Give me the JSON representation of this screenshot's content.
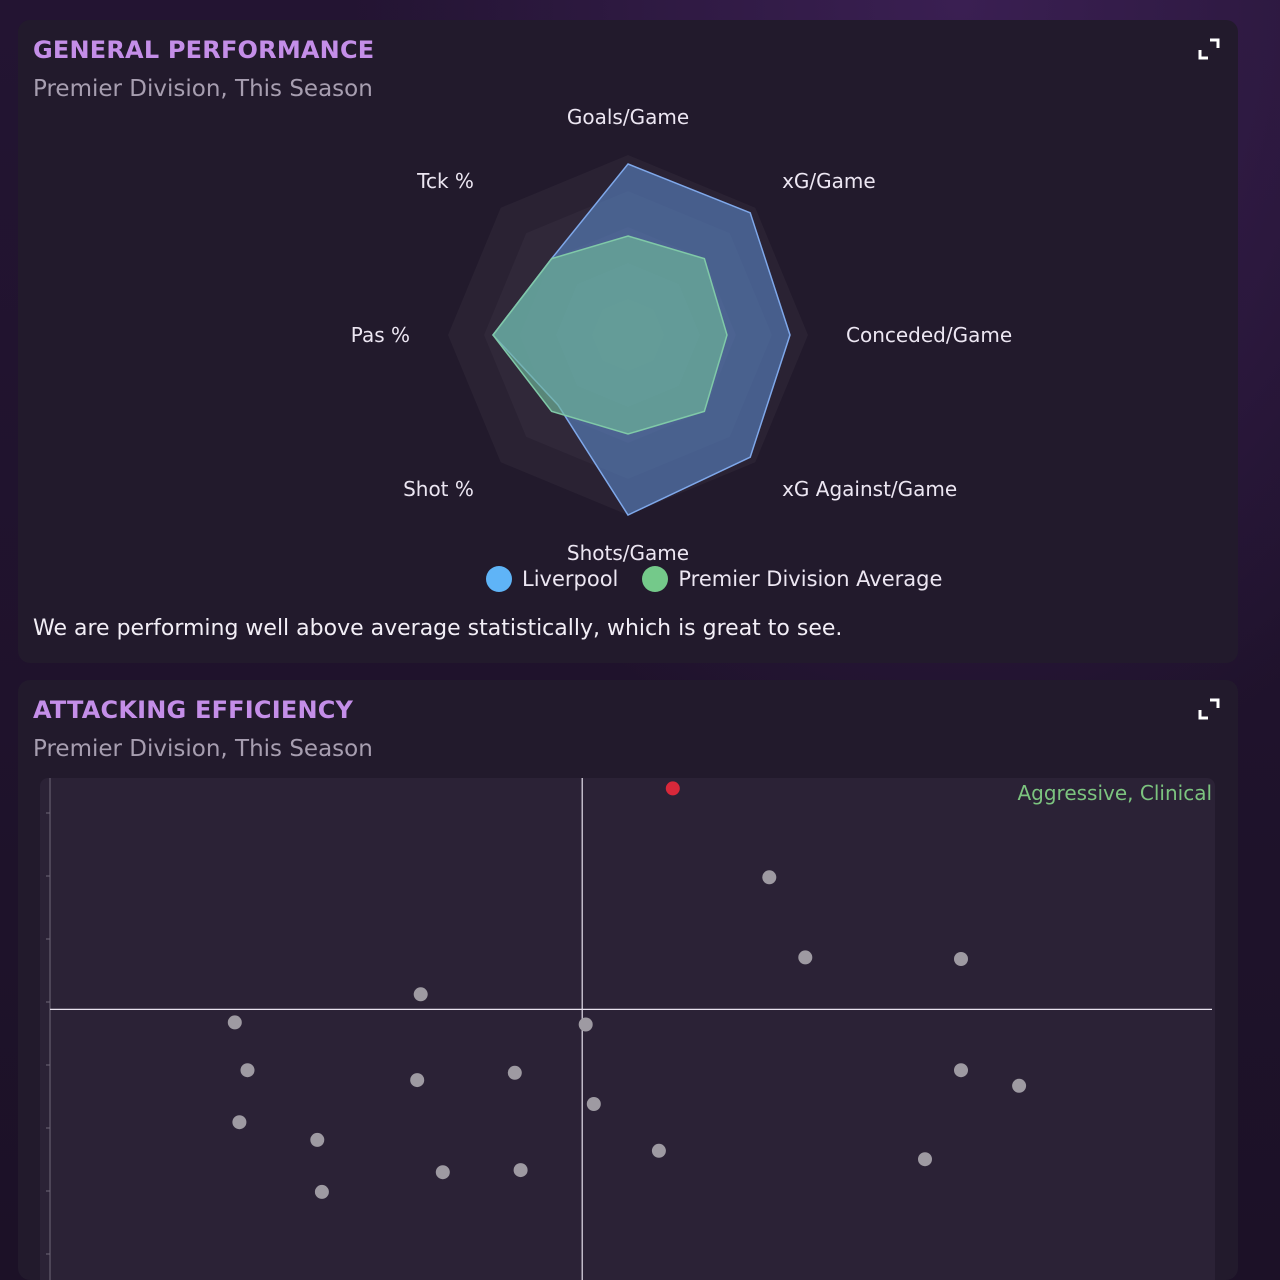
{
  "general_performance": {
    "title": "GENERAL PERFORMANCE",
    "subtitle": "Premier Division, This Season",
    "expand_icon": "expand-icon",
    "legend": [
      {
        "label": "Liverpool",
        "color": "#5fb4f7"
      },
      {
        "label": "Premier Division Average",
        "color": "#74c98a"
      }
    ],
    "summary": "We are performing well above average statistically, which is great to see.",
    "chart_data": {
      "type": "radar",
      "axes": [
        "Goals/Game",
        "xG/Game",
        "Conceded/Game",
        "xG Against/Game",
        "Shots/Game",
        "Shot %",
        "Pas %",
        "Tck %"
      ],
      "scale_max": 1.0,
      "rings": 5,
      "series": [
        {
          "name": "Liverpool",
          "color": "#5f8fd6",
          "values": [
            0.95,
            0.96,
            0.9,
            0.96,
            1.0,
            0.55,
            0.75,
            0.6
          ]
        },
        {
          "name": "Premier Division Average",
          "color": "#6fb89a",
          "values": [
            0.55,
            0.6,
            0.55,
            0.6,
            0.55,
            0.6,
            0.75,
            0.6
          ]
        }
      ]
    }
  },
  "attacking_efficiency": {
    "title": "ATTACKING EFFICIENCY",
    "subtitle": "Premier Division, This Season",
    "expand_icon": "expand-icon",
    "quadrant_label": "Aggressive, Clinical",
    "chart_data": {
      "type": "scatter",
      "xlim": [
        0,
        100
      ],
      "ylim": [
        0,
        100
      ],
      "x_mid": 45.8,
      "y_mid": 55.5,
      "highlight_color": "#d8283a",
      "point_color": "#9e9aa2",
      "points": [
        {
          "x": 53.6,
          "y": 98.0,
          "highlight": true
        },
        {
          "x": 61.9,
          "y": 80.9,
          "highlight": false
        },
        {
          "x": 65.0,
          "y": 65.5,
          "highlight": false
        },
        {
          "x": 78.4,
          "y": 65.2,
          "highlight": false
        },
        {
          "x": 31.9,
          "y": 58.4,
          "highlight": false
        },
        {
          "x": 15.9,
          "y": 53.0,
          "highlight": false
        },
        {
          "x": 46.1,
          "y": 52.6,
          "highlight": false
        },
        {
          "x": 17.0,
          "y": 43.8,
          "highlight": false
        },
        {
          "x": 31.6,
          "y": 41.9,
          "highlight": false
        },
        {
          "x": 40.0,
          "y": 43.3,
          "highlight": false
        },
        {
          "x": 78.4,
          "y": 43.8,
          "highlight": false
        },
        {
          "x": 83.4,
          "y": 40.8,
          "highlight": false
        },
        {
          "x": 46.8,
          "y": 37.3,
          "highlight": false
        },
        {
          "x": 16.3,
          "y": 33.8,
          "highlight": false
        },
        {
          "x": 23.0,
          "y": 30.4,
          "highlight": false
        },
        {
          "x": 52.4,
          "y": 28.3,
          "highlight": false
        },
        {
          "x": 75.3,
          "y": 26.7,
          "highlight": false
        },
        {
          "x": 33.8,
          "y": 24.2,
          "highlight": false
        },
        {
          "x": 40.5,
          "y": 24.6,
          "highlight": false
        },
        {
          "x": 23.4,
          "y": 20.4,
          "highlight": false
        }
      ]
    }
  }
}
